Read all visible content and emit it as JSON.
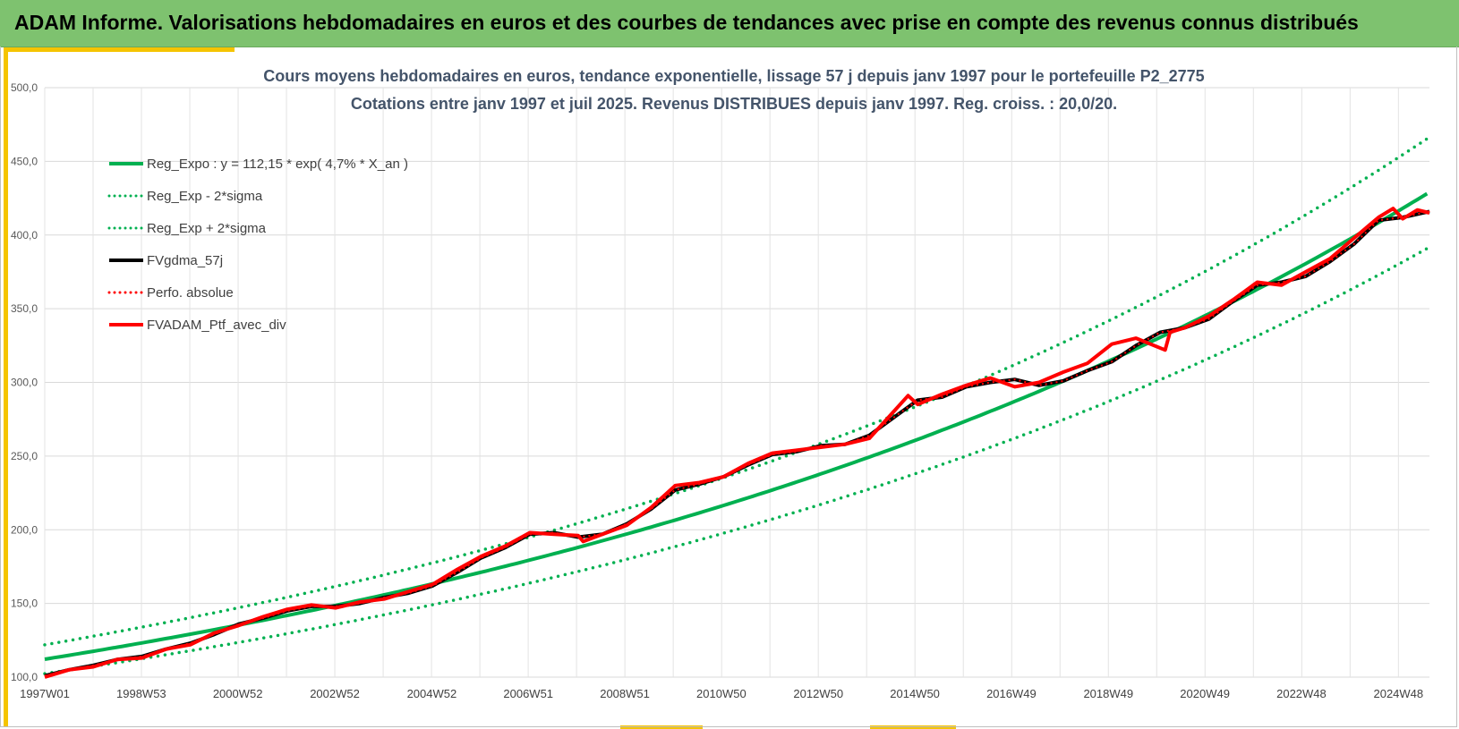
{
  "header": {
    "title": "ADAM Informe. Valorisations hebdomadaires en euros et des courbes de tendances avec prise en compte des revenus connus distribués"
  },
  "colors": {
    "header_bg": "#7ec26f",
    "accent": "#f5c400",
    "green": "#00b050",
    "red": "#ff0000",
    "black": "#000000"
  },
  "chart_data": {
    "type": "line",
    "title_line1": "Cours moyens hebdomadaires en euros, tendance exponentielle, lissage 57 j depuis janv 1997 pour le portefeuille P2_2775",
    "title_line2": "Cotations entre janv 1997 et juil 2025. Revenus DISTRIBUES depuis janv 1997. Reg. croiss. : 20,0/20.",
    "ylim": [
      100,
      500
    ],
    "y_ticks": [
      "100,0",
      "150,0",
      "200,0",
      "250,0",
      "300,0",
      "350,0",
      "400,0",
      "450,0",
      "500,0"
    ],
    "y_tick_values": [
      100,
      150,
      200,
      250,
      300,
      350,
      400,
      450,
      500
    ],
    "xlim": [
      1997.0,
      2025.55
    ],
    "x_ticks": [
      {
        "label": "1997W01",
        "x": 1997.0
      },
      {
        "label": "1998W53",
        "x": 1998.99
      },
      {
        "label": "2000W52",
        "x": 2000.98
      },
      {
        "label": "2002W52",
        "x": 2002.98
      },
      {
        "label": "2004W52",
        "x": 2004.98
      },
      {
        "label": "2006W51",
        "x": 2006.97
      },
      {
        "label": "2008W51",
        "x": 2008.96
      },
      {
        "label": "2010W50",
        "x": 2010.95
      },
      {
        "label": "2012W50",
        "x": 2012.95
      },
      {
        "label": "2014W50",
        "x": 2014.94
      },
      {
        "label": "2016W49",
        "x": 2016.93
      },
      {
        "label": "2018W49",
        "x": 2018.93
      },
      {
        "label": "2020W49",
        "x": 2020.92
      },
      {
        "label": "2022W48",
        "x": 2022.91
      },
      {
        "label": "2024W48",
        "x": 2024.91
      }
    ],
    "grid": true,
    "legend_position": "top-left",
    "regression": {
      "a": 112.15,
      "rate": 0.047,
      "sigma_factor": 0.087
    },
    "series": [
      {
        "name": "Reg_Expo : y = 112,15 * exp( 4,7% *  X_an )",
        "color": "#00b050",
        "style": "solid"
      },
      {
        "name": "Reg_Exp - 2*sigma",
        "color": "#00b050",
        "style": "dotted"
      },
      {
        "name": "Reg_Exp + 2*sigma",
        "color": "#00b050",
        "style": "dotted"
      },
      {
        "name": "FVgdma_57j",
        "color": "#000000",
        "style": "solid",
        "x": [
          1997.0,
          1997.5,
          1998.0,
          1998.5,
          1999.0,
          1999.5,
          2000.0,
          2000.5,
          2001.0,
          2001.5,
          2002.0,
          2002.5,
          2003.0,
          2003.5,
          2004.0,
          2004.5,
          2005.0,
          2005.5,
          2006.0,
          2006.5,
          2007.0,
          2007.5,
          2008.0,
          2008.5,
          2009.0,
          2009.5,
          2010.0,
          2010.5,
          2011.0,
          2011.5,
          2012.0,
          2012.5,
          2013.0,
          2013.5,
          2014.0,
          2014.5,
          2015.0,
          2015.5,
          2016.0,
          2016.5,
          2017.0,
          2017.5,
          2018.0,
          2018.5,
          2019.0,
          2019.5,
          2020.0,
          2020.5,
          2021.0,
          2021.5,
          2022.0,
          2022.5,
          2023.0,
          2023.5,
          2024.0,
          2024.5,
          2025.0,
          2025.55
        ],
        "y": [
          101,
          105,
          108,
          112,
          114,
          119,
          123,
          129,
          136,
          140,
          145,
          148,
          148,
          150,
          154,
          157,
          162,
          171,
          181,
          188,
          197,
          198,
          195,
          197,
          204,
          214,
          227,
          231,
          236,
          244,
          251,
          253,
          257,
          258,
          264,
          276,
          288,
          290,
          297,
          300,
          302,
          298,
          301,
          308,
          314,
          325,
          334,
          337,
          343,
          355,
          366,
          368,
          372,
          382,
          394,
          410,
          412,
          416
        ]
      },
      {
        "name": "Perfo. absolue",
        "color": "#ff0000",
        "style": "dotted",
        "x": [
          1997.0,
          1997.5,
          1998.0,
          1998.5,
          1999.0,
          1999.5,
          2000.0,
          2000.5,
          2001.0,
          2001.5,
          2002.0,
          2002.5,
          2003.0,
          2003.5,
          2004.0,
          2004.5,
          2005.0,
          2005.5,
          2006.0,
          2006.5,
          2007.0,
          2007.5,
          2008.0,
          2008.5,
          2009.0,
          2009.5,
          2010.0,
          2010.5,
          2011.0,
          2011.5,
          2012.0,
          2012.5,
          2013.0,
          2013.5,
          2014.0,
          2014.5,
          2015.0,
          2015.5,
          2016.0,
          2016.5,
          2017.0,
          2017.5,
          2018.0,
          2018.5,
          2019.0,
          2019.5,
          2020.0,
          2020.5,
          2021.0,
          2021.5,
          2022.0,
          2022.5,
          2023.0,
          2023.5,
          2024.0,
          2024.5,
          2025.0,
          2025.55
        ],
        "y": [
          101,
          105,
          108,
          112,
          114,
          119,
          123,
          129,
          136,
          140,
          145,
          148,
          148,
          150,
          154,
          157,
          162,
          171,
          181,
          188,
          197,
          198,
          195,
          197,
          204,
          214,
          227,
          231,
          236,
          244,
          251,
          253,
          257,
          258,
          264,
          276,
          288,
          290,
          297,
          300,
          302,
          298,
          301,
          308,
          314,
          325,
          334,
          337,
          343,
          355,
          366,
          368,
          372,
          382,
          394,
          410,
          412,
          416
        ]
      },
      {
        "name": "FVADAM_Ptf_avec_div",
        "color": "#ff0000",
        "style": "solid",
        "x": [
          1997.0,
          1997.5,
          1998.0,
          1998.5,
          1999.0,
          1999.5,
          2000.0,
          2000.5,
          2001.0,
          2001.5,
          2002.0,
          2002.5,
          2003.0,
          2003.5,
          2004.0,
          2004.5,
          2005.0,
          2005.5,
          2006.0,
          2006.5,
          2007.0,
          2007.5,
          2008.0,
          2008.1,
          2008.5,
          2009.0,
          2009.5,
          2010.0,
          2010.5,
          2011.0,
          2011.5,
          2012.0,
          2012.5,
          2013.0,
          2013.5,
          2014.0,
          2014.5,
          2014.8,
          2015.0,
          2015.5,
          2016.0,
          2016.5,
          2017.0,
          2017.5,
          2018.0,
          2018.5,
          2019.0,
          2019.5,
          2020.1,
          2020.2,
          2020.5,
          2021.0,
          2021.5,
          2022.0,
          2022.5,
          2023.0,
          2023.5,
          2024.0,
          2024.5,
          2024.8,
          2025.0,
          2025.3,
          2025.55
        ],
        "y": [
          100,
          105,
          107,
          112,
          113,
          119,
          122,
          130,
          135,
          141,
          146,
          149,
          147,
          151,
          153,
          158,
          163,
          173,
          182,
          189,
          198,
          197,
          196,
          192,
          197,
          203,
          215,
          230,
          232,
          236,
          245,
          252,
          254,
          256,
          258,
          262,
          280,
          291,
          285,
          292,
          298,
          303,
          297,
          300,
          307,
          313,
          326,
          330,
          322,
          334,
          337,
          345,
          356,
          368,
          366,
          375,
          384,
          398,
          412,
          418,
          411,
          417,
          415
        ]
      }
    ]
  }
}
